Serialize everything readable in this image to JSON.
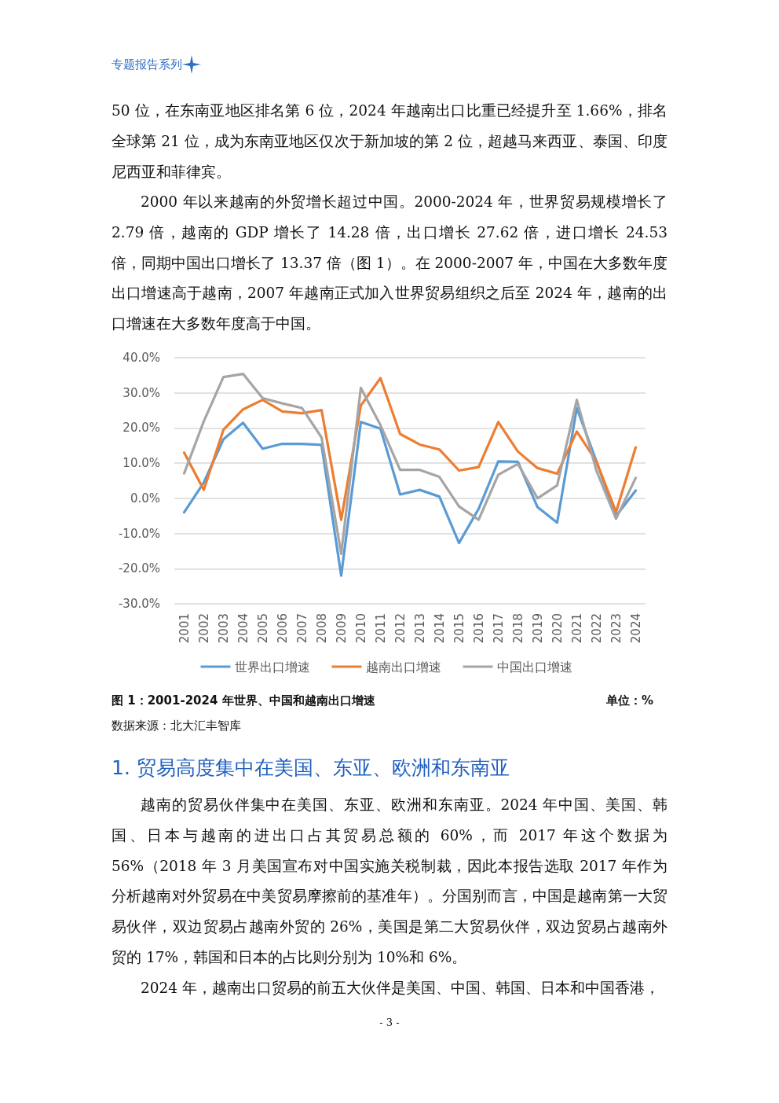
{
  "chart_data": {
    "type": "line",
    "title": "图 1：2001-2024 年世界、中国和越南出口增速",
    "annotations": [
      "专题报告系列",
      "50 位，在东南亚地区排名第 6 位，2024 年越南出口比重已经提升至 1.66%，排名全球第 21 位，成为东南亚地区仅次于新加坡的第 2 位，超越马来西亚、泰国、印度尼西亚和菲律宾。",
      "2000 年以来越南的外贸增长超过中国。2000-2024 年，世界贸易规模增长了 2.79 倍，越南的 GDP 增长了 14.28 倍，出口增长 27.62 倍，进口增长 24.53 倍，同期中国出口增长了 13.37 倍（图 1）。在 2000-2007 年，中国在大多数年度出口增速高于越南，2007 年越南正式加入世界贸易组织之后至 2024 年，越南的出口增速在大多数年度高于中国。",
      "单位：%",
      "数据来源：北大汇丰智库",
      "1. 贸易高度集中在美国、东亚、欧洲和东南亚",
      "越南的贸易伙伴集中在美国、东亚、欧洲和东南亚。2024 年中国、美国、韩国、日本与越南的进出口占其贸易总额的 60%，而 2017 年这个数据为 56%（2018 年 3 月美国宣布对中国实施关税制裁，因此本报告选取 2017 年作为分析越南对外贸易在中美贸易摩擦前的基准年）。分国别而言，中国是越南第一大贸易伙伴，双边贸易占越南外贸的 26%，美国是第二大贸易伙伴，双边贸易占越南外贸的 17%，韩国和日本的占比则分别为 10%和 6%。",
      "2024 年，越南出口贸易的前五大伙伴是美国、中国、韩国、日本和中国香港，",
      "- 3 -"
    ],
    "categories": [
      "2001",
      "2002",
      "2003",
      "2004",
      "2005",
      "2006",
      "2007",
      "2008",
      "2009",
      "2010",
      "2011",
      "2012",
      "2013",
      "2014",
      "2015",
      "2016",
      "2017",
      "2018",
      "2019",
      "2020",
      "2021",
      "2022",
      "2023",
      "2024"
    ],
    "series": [
      {
        "name": "世界出口增速",
        "color": "#5b9bd5",
        "values": [
          -4,
          4.5,
          16.8,
          21.5,
          14.1,
          15.5,
          15.5,
          15.2,
          -22,
          21.7,
          19.8,
          1.1,
          2.4,
          0.5,
          -12.7,
          -3,
          10.5,
          10.4,
          -2.5,
          -6.9,
          25.7,
          10.5,
          -5,
          2.2
        ]
      },
      {
        "name": "越南出口增速",
        "color": "#ed7d31",
        "values": [
          13,
          2.4,
          19.5,
          25.3,
          28,
          24.7,
          24.2,
          25.1,
          -6.1,
          26.4,
          34.2,
          18.3,
          15.3,
          13.9,
          7.9,
          8.9,
          21.7,
          13.3,
          8.6,
          7,
          19,
          10.5,
          -3.9,
          14.5
        ]
      },
      {
        "name": "中国出口增速",
        "color": "#a5a5a5",
        "values": [
          7.1,
          21.9,
          34.5,
          35.4,
          28.5,
          27,
          25.7,
          17.3,
          -15.8,
          31.4,
          20.8,
          8.1,
          8.1,
          6.1,
          -2.3,
          -6.1,
          6.7,
          9.8,
          0,
          3.7,
          28,
          7.9,
          -5.8,
          5.8
        ]
      }
    ],
    "ylim": [
      -30,
      40
    ],
    "yticks": [
      {
        "value": -30,
        "label": "-30.0%"
      },
      {
        "value": -20,
        "label": "-20.0%"
      },
      {
        "value": -10,
        "label": "-10.0%"
      },
      {
        "value": 0,
        "label": "0.0%"
      },
      {
        "value": 10,
        "label": "10.0%"
      },
      {
        "value": 20,
        "label": "20.0%"
      },
      {
        "value": 30,
        "label": "30.0%"
      },
      {
        "value": 40,
        "label": "40.0%"
      }
    ],
    "grid": "y",
    "legend": "bottom",
    "marker": "none",
    "line_style": "solid"
  }
}
